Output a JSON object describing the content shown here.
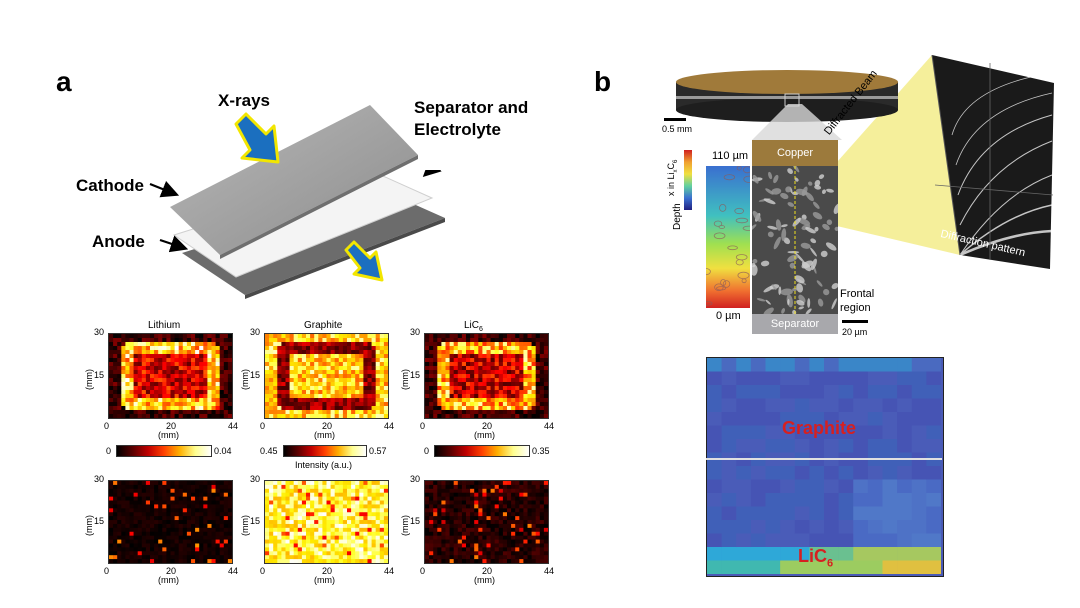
{
  "panel_a": {
    "letter": "a",
    "labels": {
      "xrays": "X-rays",
      "separator_line1": "Separator and",
      "separator_line2": "Electrolyte",
      "cathode": "Cathode",
      "anode": "Anode"
    },
    "maps": [
      {
        "title": "Lithium",
        "cmap": "hot"
      },
      {
        "title": "Graphite",
        "cmap": "hot"
      },
      {
        "title": "LiC",
        "title_sub": "6",
        "cmap": "hot"
      }
    ],
    "axes": {
      "y_ticks": [
        "30",
        "15",
        "0"
      ],
      "x_ticks": [
        "0",
        "20",
        "44"
      ],
      "x_unit": "(mm)",
      "y_unit": "(mm)"
    },
    "colorbars": [
      {
        "min": "0",
        "max": "0.04"
      },
      {
        "min": "0.45",
        "max": "0.57",
        "label": "Intensity (a.u.)"
      },
      {
        "min": "0",
        "max": "0.35"
      }
    ]
  },
  "panel_b": {
    "letter": "b",
    "scale_top": "0.5 mm",
    "copper": "Copper",
    "separator": "Separator",
    "frontal_line1": "Frontal",
    "frontal_line2": "region",
    "scale_bottom": "20 µm",
    "depth_top": "110 µm",
    "depth_bottom": "0 µm",
    "depth_label": "Depth",
    "x_label": "x in Li",
    "x_label_sub": "x",
    "x_label_tail": "C",
    "x_label_tail_sub": "6",
    "diffracted_beam": "Diffracted Beam",
    "diffraction_pattern": "Diffraction pattern",
    "graphite": "Graphite",
    "lic6": "LiC",
    "lic6_sub": "6",
    "colors": {
      "copper": "#9c7a3c",
      "separator": "#a8a8ac",
      "graphite_map": "#4453b4",
      "label_red": "#d62020"
    }
  }
}
